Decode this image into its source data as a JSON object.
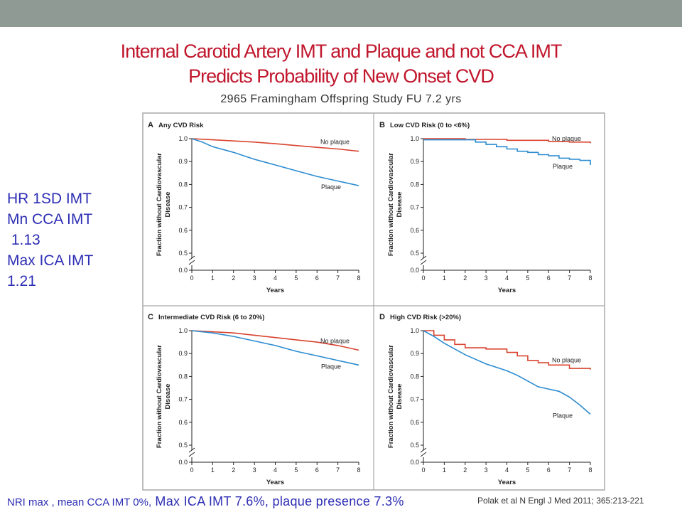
{
  "slide": {
    "title_line1": "Internal Carotid Artery IMT and Plaque and not CCA IMT",
    "title_line2": "Predicts Probability of New Onset CVD",
    "subtitle": "2965 Framingham Offspring Study FU 7.2 yrs",
    "hr_lines": [
      "HR 1SD IMT",
      "Mn CCA IMT",
      " 1.13",
      "Max ICA IMT",
      "1.21"
    ],
    "nri_small": "NRI max , mean CCA IMT 0%,",
    "nri_big": " Max ICA IMT 7.6%, plaque presence 7.3%",
    "citation": "Polak et al N Engl J Med 2011; 365:213-221",
    "colors": {
      "title": "#c0172d",
      "blue_text": "#2d2db4",
      "topbar": "#8e9a93",
      "no_plaque_line": "#d9432f",
      "plaque_line": "#2b8bd0"
    }
  },
  "chart_data": [
    {
      "type": "line",
      "panel_letter": "A",
      "title": "Any CVD Risk",
      "xlabel": "Years",
      "ylabel": "Fraction without Cardiovascular Disease",
      "xlim": [
        0,
        8
      ],
      "ylim": [
        0.0,
        1.0
      ],
      "x_ticks": [
        "0",
        "1",
        "2",
        "3",
        "4",
        "5",
        "6",
        "7",
        "8"
      ],
      "y_ticks": [
        "0.0",
        "0.5",
        "0.6",
        "0.7",
        "0.8",
        "0.9",
        "1.0"
      ],
      "series": [
        {
          "name": "No plaque",
          "x": [
            0,
            1,
            2,
            3,
            4,
            5,
            6,
            7,
            8
          ],
          "y": [
            1.0,
            0.995,
            0.99,
            0.985,
            0.978,
            0.97,
            0.962,
            0.955,
            0.945
          ]
        },
        {
          "name": "Plaque",
          "x": [
            0,
            0.5,
            1,
            2,
            3,
            4,
            5,
            6,
            7,
            7.5,
            8
          ],
          "y": [
            1.0,
            0.985,
            0.965,
            0.94,
            0.91,
            0.885,
            0.86,
            0.835,
            0.815,
            0.805,
            0.795
          ]
        }
      ]
    },
    {
      "type": "line",
      "panel_letter": "B",
      "title": "Low CVD Risk (0 to <6%)",
      "xlabel": "Years",
      "ylabel": "Fraction without Cardiovascular Disease",
      "xlim": [
        0,
        8
      ],
      "ylim": [
        0.0,
        1.0
      ],
      "x_ticks": [
        "0",
        "1",
        "2",
        "3",
        "4",
        "5",
        "6",
        "7",
        "8"
      ],
      "y_ticks": [
        "0.0",
        "0.5",
        "0.6",
        "0.7",
        "0.8",
        "0.9",
        "1.0"
      ],
      "series": [
        {
          "name": "No plaque",
          "x": [
            0,
            2,
            4,
            6,
            7,
            8
          ],
          "y": [
            1.0,
            0.997,
            0.993,
            0.988,
            0.985,
            0.98
          ],
          "step": true
        },
        {
          "name": "Plaque",
          "x": [
            0,
            2,
            2.5,
            3,
            3.5,
            4,
            4.5,
            5,
            5.5,
            6,
            6.5,
            7,
            7.5,
            8,
            8
          ],
          "y": [
            0.995,
            0.995,
            0.985,
            0.975,
            0.965,
            0.955,
            0.945,
            0.94,
            0.93,
            0.925,
            0.915,
            0.91,
            0.905,
            0.905,
            0.885
          ],
          "step": true
        }
      ]
    },
    {
      "type": "line",
      "panel_letter": "C",
      "title": "Intermediate CVD Risk (6 to 20%)",
      "xlabel": "Years",
      "ylabel": "Fraction without Cardiovascular Disease",
      "xlim": [
        0,
        8
      ],
      "ylim": [
        0.0,
        1.0
      ],
      "x_ticks": [
        "0",
        "1",
        "2",
        "3",
        "4",
        "5",
        "6",
        "7",
        "8"
      ],
      "y_ticks": [
        "0.0",
        "0.5",
        "0.6",
        "0.7",
        "0.8",
        "0.9",
        "1.0"
      ],
      "series": [
        {
          "name": "No plaque",
          "x": [
            0,
            1,
            2,
            3,
            4,
            5,
            6,
            7,
            8
          ],
          "y": [
            1.0,
            0.995,
            0.99,
            0.98,
            0.97,
            0.96,
            0.95,
            0.935,
            0.915
          ]
        },
        {
          "name": "Plaque",
          "x": [
            0,
            1,
            2,
            3,
            4,
            5,
            6,
            7,
            8
          ],
          "y": [
            1.0,
            0.99,
            0.975,
            0.955,
            0.935,
            0.91,
            0.89,
            0.87,
            0.85
          ]
        }
      ]
    },
    {
      "type": "line",
      "panel_letter": "D",
      "title": "High CVD Risk (>20%)",
      "xlabel": "Years",
      "ylabel": "Fraction without Cardiovascular Disease",
      "xlim": [
        0,
        8
      ],
      "ylim": [
        0.0,
        1.0
      ],
      "x_ticks": [
        "0",
        "1",
        "2",
        "3",
        "4",
        "5",
        "6",
        "7",
        "8"
      ],
      "y_ticks": [
        "0.0",
        "0.5",
        "0.6",
        "0.7",
        "0.8",
        "0.9",
        "1.0"
      ],
      "series": [
        {
          "name": "No plaque",
          "x": [
            0,
            0.5,
            1,
            1.5,
            2,
            3,
            4,
            4.5,
            5,
            5.5,
            6,
            7,
            8
          ],
          "y": [
            1.0,
            0.98,
            0.96,
            0.94,
            0.925,
            0.92,
            0.905,
            0.89,
            0.87,
            0.86,
            0.85,
            0.835,
            0.83
          ],
          "step": true
        },
        {
          "name": "Plaque",
          "x": [
            0,
            0.5,
            1,
            1.5,
            2,
            2.5,
            3,
            3.5,
            4,
            4.5,
            5,
            5.5,
            6,
            6.5,
            7,
            7.5,
            8
          ],
          "y": [
            1.0,
            0.975,
            0.945,
            0.92,
            0.895,
            0.875,
            0.855,
            0.84,
            0.825,
            0.805,
            0.78,
            0.755,
            0.745,
            0.735,
            0.71,
            0.675,
            0.635
          ]
        }
      ]
    }
  ]
}
